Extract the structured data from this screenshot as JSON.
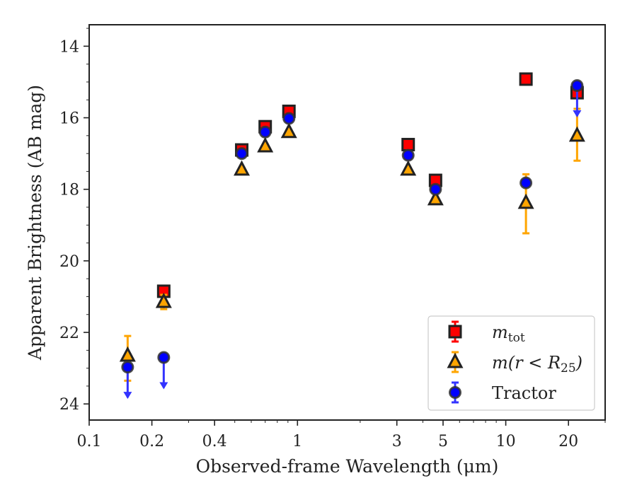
{
  "chart_data": {
    "type": "scatter",
    "xlabel": "Observed-frame Wavelength (μm)",
    "ylabel": "Apparent Brightness (AB mag)",
    "xscale": "log",
    "xlim": [
      0.1,
      30
    ],
    "ylim": [
      24.45,
      13.4
    ],
    "y_inverted": true,
    "x_ticks": [
      0.1,
      0.2,
      0.4,
      1,
      3,
      5,
      10,
      20
    ],
    "x_tick_labels": [
      "0.1",
      "0.2",
      "0.4",
      "1",
      "3",
      "5",
      "10",
      "20"
    ],
    "y_ticks": [
      14,
      16,
      18,
      20,
      22,
      24
    ],
    "y_tick_labels": [
      "14",
      "16",
      "18",
      "20",
      "22",
      "24"
    ],
    "grid": false,
    "legend_position": "lower-right",
    "series": [
      {
        "label_base": "m",
        "label_sub": "tot",
        "marker": "square",
        "color": "#ff0000",
        "edge_color": "#222222",
        "error_color": "#ff0000",
        "points": [
          {
            "x": 0.228,
            "y": 20.85,
            "err": 0.1
          },
          {
            "x": 0.54,
            "y": 16.9,
            "err": 0.05
          },
          {
            "x": 0.7,
            "y": 16.25,
            "err": 0.05
          },
          {
            "x": 0.91,
            "y": 15.82,
            "err": 0.05
          },
          {
            "x": 3.4,
            "y": 16.75,
            "err": 0.05
          },
          {
            "x": 4.6,
            "y": 17.75,
            "err": 0.05
          },
          {
            "x": 12.5,
            "y": 14.92,
            "err": 0.05
          },
          {
            "x": 22.0,
            "y": 15.3,
            "err": 0.05
          }
        ]
      },
      {
        "label_base": "m(r < R",
        "label_sub": "25",
        "label_suffix": ")",
        "marker": "triangle",
        "color": "#ffa500",
        "edge_color": "#222222",
        "error_color": "#ffa500",
        "points": [
          {
            "x": 0.153,
            "y": 22.65,
            "err_low": 0.55,
            "err_high": 0.7
          },
          {
            "x": 0.228,
            "y": 21.15,
            "err": 0.2
          },
          {
            "x": 0.54,
            "y": 17.45,
            "err": 0.05
          },
          {
            "x": 0.7,
            "y": 16.8,
            "err": 0.05
          },
          {
            "x": 0.91,
            "y": 16.4,
            "err": 0.05
          },
          {
            "x": 3.4,
            "y": 17.45,
            "err": 0.05
          },
          {
            "x": 4.6,
            "y": 18.28,
            "err": 0.05
          },
          {
            "x": 12.5,
            "y": 18.38,
            "err_low": 0.8,
            "err_high": 0.85
          },
          {
            "x": 22.0,
            "y": 16.5,
            "err_low": 0.75,
            "err_high": 0.7
          }
        ]
      },
      {
        "label_base": "Tractor",
        "marker": "circle",
        "color": "#0000ff",
        "edge_color": "#333333",
        "error_color": "#3333ff",
        "points": [
          {
            "x": 0.153,
            "y": 22.97,
            "upper_limit": true
          },
          {
            "x": 0.228,
            "y": 22.7,
            "upper_limit": true
          },
          {
            "x": 0.54,
            "y": 17.0,
            "err": 0.05
          },
          {
            "x": 0.7,
            "y": 16.4,
            "err": 0.05
          },
          {
            "x": 0.91,
            "y": 16.02,
            "err": 0.05
          },
          {
            "x": 3.4,
            "y": 17.05,
            "err": 0.05
          },
          {
            "x": 4.6,
            "y": 18.0,
            "err": 0.05
          },
          {
            "x": 12.5,
            "y": 17.82,
            "err": 0.05
          },
          {
            "x": 22.0,
            "y": 15.1,
            "upper_limit": true
          }
        ]
      }
    ]
  }
}
